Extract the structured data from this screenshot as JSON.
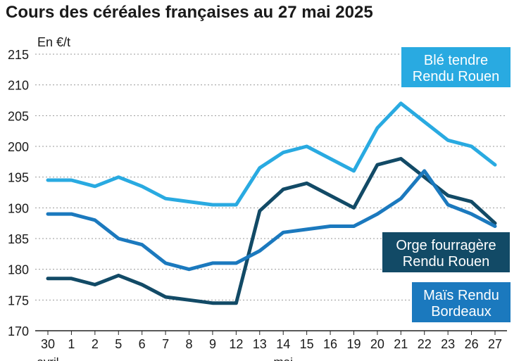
{
  "chart_data": {
    "type": "line",
    "title": "Cours des céréales françaises au 27 mai 2025",
    "ylabel": "En €/t",
    "ylim": [
      170,
      215
    ],
    "yticks": [
      170,
      175,
      180,
      185,
      190,
      195,
      200,
      205,
      210,
      215
    ],
    "categories": [
      "30",
      "1",
      "2",
      "5",
      "6",
      "7",
      "8",
      "9",
      "12",
      "13",
      "14",
      "15",
      "16",
      "19",
      "20",
      "21",
      "22",
      "23",
      "26",
      "27"
    ],
    "month_labels": [
      {
        "label": "avril",
        "index": 0
      },
      {
        "label": "mai",
        "index": 10
      }
    ],
    "grid": "horizontal dotted",
    "series": [
      {
        "name": "Blé tendre Rendu Rouen",
        "name_lines": [
          "Blé tendre",
          "Rendu Rouen"
        ],
        "color": "#29aae1",
        "values": [
          194.5,
          194.5,
          193.5,
          195,
          193.5,
          191.5,
          191,
          190.5,
          190.5,
          196.5,
          199,
          200,
          198,
          196,
          203,
          207,
          204,
          201,
          200,
          197
        ]
      },
      {
        "name": "Orge fourragère Rendu Rouen",
        "name_lines": [
          "Orge fourragère",
          "Rendu Rouen"
        ],
        "color": "#124a66",
        "values": [
          178.5,
          178.5,
          177.5,
          179,
          177.5,
          175.5,
          175,
          174.5,
          174.5,
          189.5,
          193,
          194,
          192,
          190,
          197,
          198,
          195,
          192,
          191,
          187.5
        ]
      },
      {
        "name": "Maïs Rendu Bordeaux",
        "name_lines": [
          "Maïs Rendu",
          "Bordeaux"
        ],
        "color": "#1b79be",
        "values": [
          189,
          189,
          188,
          185,
          184,
          181,
          180,
          181,
          181,
          183,
          186,
          186.5,
          187,
          187,
          189,
          191.5,
          196,
          190.5,
          189,
          187
        ]
      }
    ]
  }
}
